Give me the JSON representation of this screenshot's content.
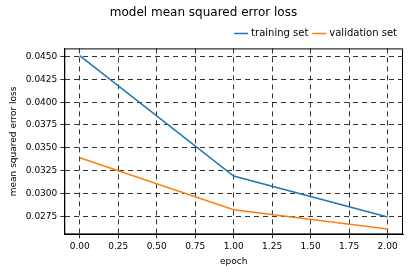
{
  "chart_data": {
    "type": "line",
    "title": "model mean squared error loss",
    "x_label": "epoch",
    "y_label": "mean squared error loss",
    "x": [
      0,
      1,
      2
    ],
    "series": [
      {
        "name": "training set",
        "color": "#1f77b4",
        "values": [
          0.0451,
          0.0319,
          0.0274
        ]
      },
      {
        "name": "validation set",
        "color": "#ff7f0e",
        "values": [
          0.0339,
          0.0282,
          0.0261
        ]
      }
    ],
    "xlim": [
      -0.1,
      2.1
    ],
    "xticks": [
      {
        "value": 0,
        "label": "0.00"
      },
      0.25,
      {
        "value": 0.5,
        "label": "0.50"
      },
      0.75,
      {
        "value": 1,
        "label": "1.00"
      },
      1.25,
      {
        "value": 1.5,
        "label": "1.50"
      },
      1.75,
      {
        "value": 2,
        "label": "2.00"
      }
    ],
    "ylim": [
      0.0255,
      0.0459
    ],
    "yticks": [
      0.0275,
      {
        "value": 0.03,
        "label": "0.0300"
      },
      0.0325,
      {
        "value": 0.035,
        "label": "0.0350"
      },
      0.0375,
      {
        "value": 0.04,
        "label": "0.0400"
      },
      0.0425,
      {
        "value": 0.045,
        "label": "0.0450"
      }
    ],
    "grid": true,
    "legend": "upper right"
  }
}
